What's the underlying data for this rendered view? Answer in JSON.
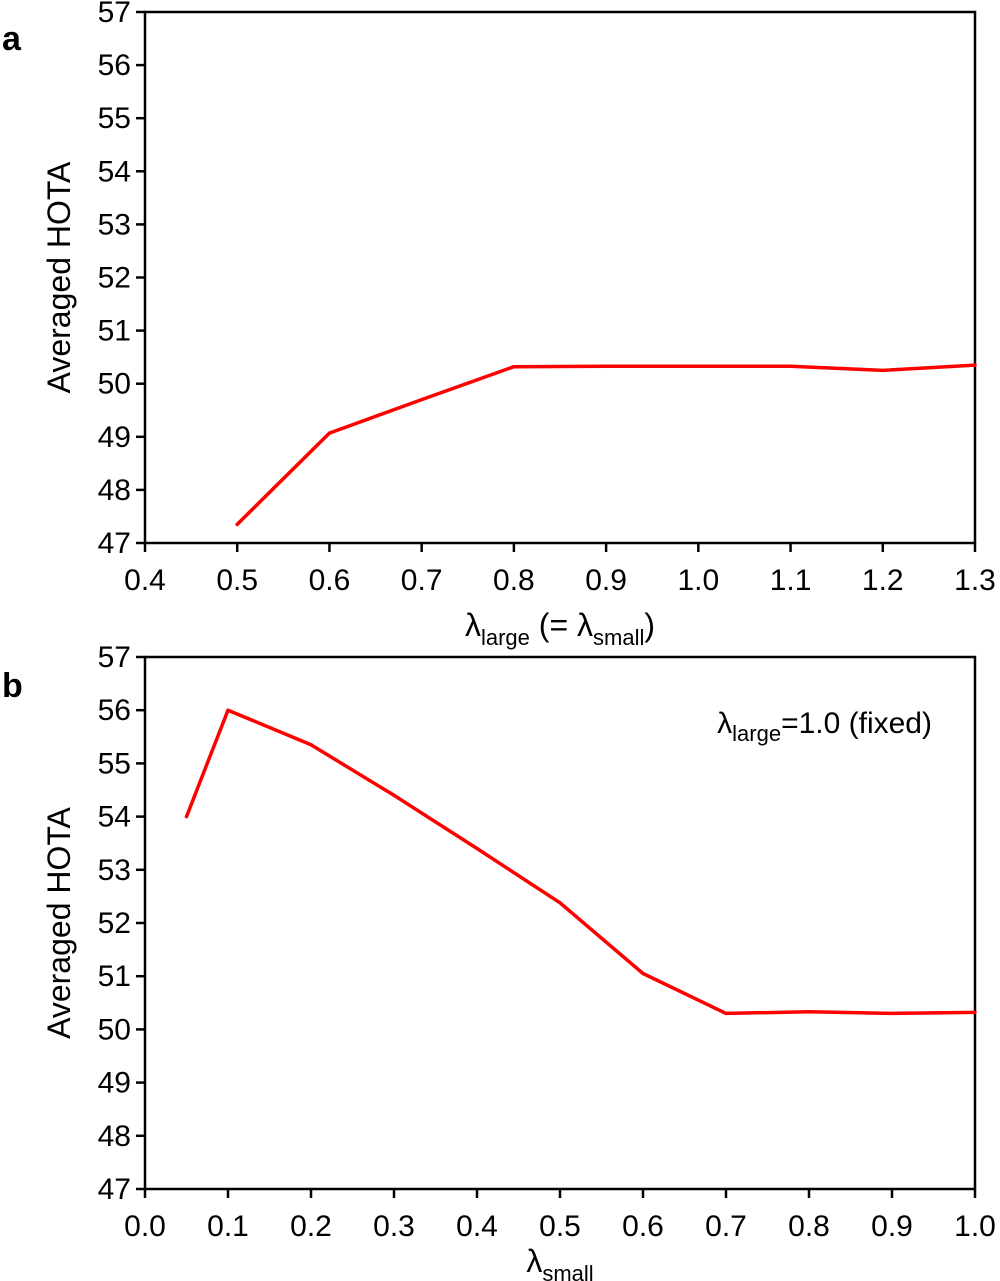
{
  "chart_data": [
    {
      "panel": "a",
      "type": "line",
      "xlabel": "λ",
      "xlabel_sub": "large",
      "xlabel_mid": " (= λ",
      "xlabel_sub2": "small",
      "xlabel_end": ")",
      "ylabel": "Averaged HOTA",
      "xlim": [
        0.4,
        1.3
      ],
      "ylim": [
        47,
        57
      ],
      "xticks": [
        "0.4",
        "0.5",
        "0.6",
        "0.7",
        "0.8",
        "0.9",
        "1.0",
        "1.1",
        "1.2",
        "1.3"
      ],
      "yticks": [
        "47",
        "48",
        "49",
        "50",
        "51",
        "52",
        "53",
        "54",
        "55",
        "56",
        "57"
      ],
      "grid": false,
      "series": [
        {
          "color": "#ff0000",
          "x": [
            0.5,
            0.6,
            0.7,
            0.8,
            0.9,
            1.0,
            1.1,
            1.2,
            1.3
          ],
          "y": [
            47.35,
            49.07,
            49.7,
            50.32,
            50.33,
            50.33,
            50.33,
            50.25,
            50.35
          ]
        }
      ]
    },
    {
      "panel": "b",
      "type": "line",
      "xlabel": "λ",
      "xlabel_sub": "small",
      "ylabel": "Averaged HOTA",
      "xlim": [
        0.0,
        1.0
      ],
      "ylim": [
        47,
        57
      ],
      "xticks": [
        "0.0",
        "0.1",
        "0.2",
        "0.3",
        "0.4",
        "0.5",
        "0.6",
        "0.7",
        "0.8",
        "0.9",
        "1.0"
      ],
      "yticks": [
        "47",
        "48",
        "49",
        "50",
        "51",
        "52",
        "53",
        "54",
        "55",
        "56",
        "57"
      ],
      "grid": false,
      "annotation": {
        "main": "λ",
        "sub": "large",
        "rest": "=1.0 (fixed)"
      },
      "series": [
        {
          "color": "#ff0000",
          "x": [
            0.05,
            0.1,
            0.2,
            0.3,
            0.4,
            0.5,
            0.6,
            0.7,
            0.8,
            0.9,
            1.0
          ],
          "y": [
            54.0,
            56.0,
            55.35,
            54.4,
            53.4,
            52.38,
            51.05,
            50.3,
            50.33,
            50.3,
            50.32
          ]
        }
      ]
    }
  ]
}
